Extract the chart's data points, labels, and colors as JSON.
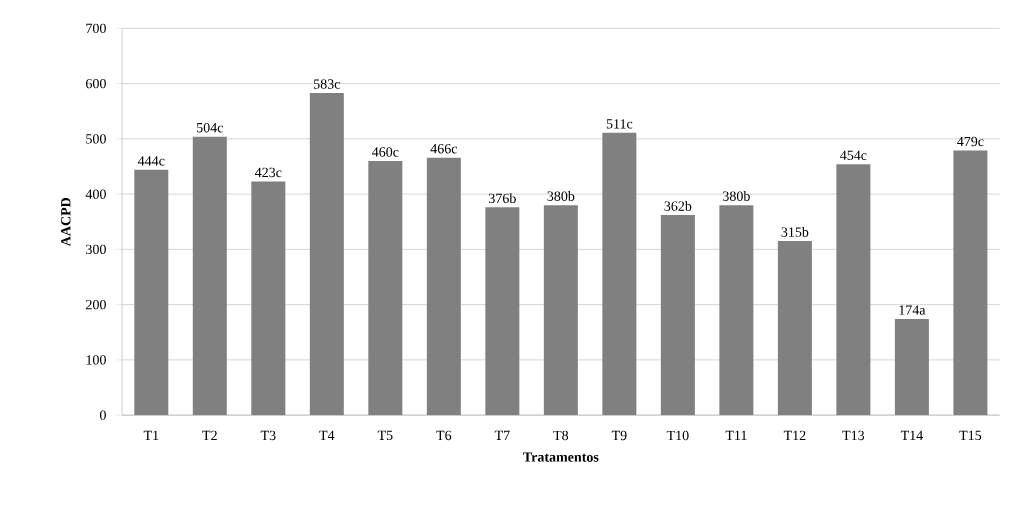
{
  "chart_data": {
    "type": "bar",
    "xlabel": "Tratamentos",
    "ylabel": "AACPD",
    "categories": [
      "T1",
      "T2",
      "T3",
      "T4",
      "T5",
      "T6",
      "T7",
      "T8",
      "T9",
      "T10",
      "T11",
      "T12",
      "T13",
      "T14",
      "T15"
    ],
    "values": [
      444,
      504,
      423,
      583,
      460,
      466,
      376,
      380,
      511,
      362,
      380,
      315,
      454,
      174,
      479
    ],
    "value_labels": [
      "444c",
      "504c",
      "423c",
      "583c",
      "460c",
      "466c",
      "376b",
      "380b",
      "511c",
      "362b",
      "380b",
      "315b",
      "454c",
      "174a",
      "479c"
    ],
    "color": "#808080",
    "ylim": [
      0,
      700
    ],
    "yticks": [
      0,
      100,
      200,
      300,
      400,
      500,
      600,
      700
    ],
    "grid": "y"
  }
}
